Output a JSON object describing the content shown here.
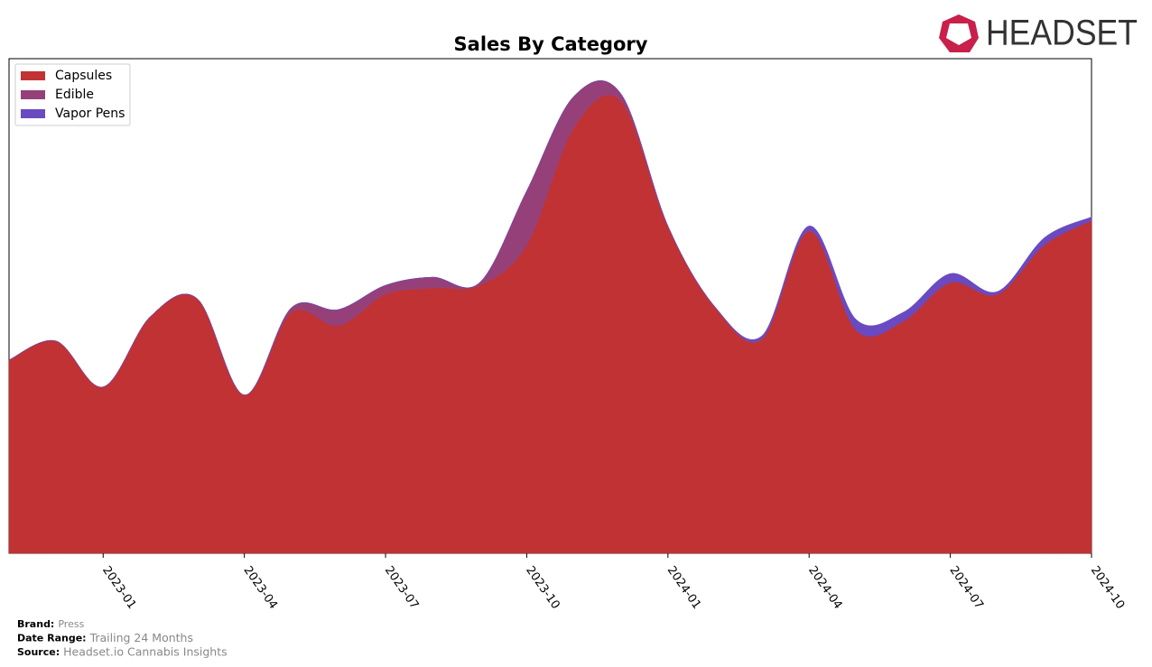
{
  "chart_data": {
    "type": "stacked_area",
    "title": "Sales By Category",
    "x": [
      "2022-11",
      "2022-12",
      "2023-01",
      "2023-02",
      "2023-03",
      "2023-04",
      "2023-05",
      "2023-06",
      "2023-07",
      "2023-08",
      "2023-09",
      "2023-10",
      "2023-11",
      "2023-12",
      "2024-01",
      "2024-02",
      "2024-03",
      "2024-04",
      "2024-05",
      "2024-06",
      "2024-07",
      "2024-08",
      "2024-09",
      "2024-10"
    ],
    "xticks": [
      "2023-01",
      "2023-04",
      "2023-07",
      "2023-10",
      "2024-01",
      "2024-04",
      "2024-07",
      "2024-10"
    ],
    "ylim": [
      0,
      550
    ],
    "legend": "upper left",
    "series": [
      {
        "name": "Capsules",
        "color": "#c03234",
        "values": [
          215,
          236,
          185,
          263,
          283,
          176,
          268,
          253,
          288,
          295,
          298,
          343,
          473,
          503,
          363,
          273,
          238,
          358,
          248,
          258,
          301,
          288,
          343,
          370
        ]
      },
      {
        "name": "Edible",
        "color": "#96407a",
        "values": [
          0,
          0,
          0,
          0,
          0,
          0,
          5,
          18,
          10,
          12,
          3,
          60,
          35,
          8,
          1,
          1,
          1,
          1,
          0,
          0,
          0,
          0,
          0,
          0
        ]
      },
      {
        "name": "Vapor Pens",
        "color": "#6a4ac0",
        "values": [
          0,
          0,
          0,
          0,
          0,
          0,
          0,
          0,
          0,
          0,
          0,
          0,
          0,
          0,
          0,
          0,
          3,
          5,
          12,
          10,
          10,
          3,
          8,
          4
        ]
      }
    ]
  },
  "logo_text": "HEADSET",
  "footer": [
    {
      "label": "Brand:",
      "value": "Press"
    },
    {
      "label": "Date Range:",
      "value": "Trailing 24 Months"
    },
    {
      "label": "Source:",
      "value": "Headset.io Cannabis Insights"
    }
  ]
}
